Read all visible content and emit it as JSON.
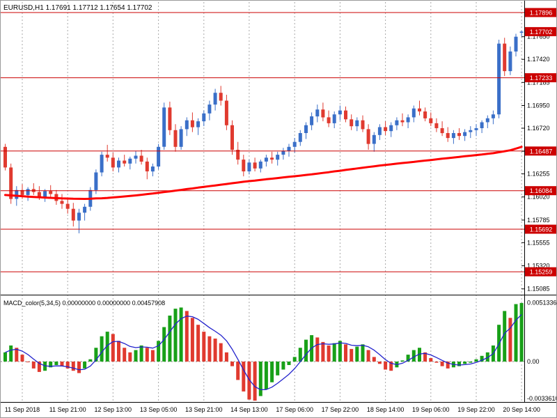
{
  "titles": {
    "main": "EURUSD,H1 1.17691 1.17712 1.17654 1.17702",
    "macd": "MACD_color(5,34,5) 0.00000000 0.00000000 0.00457908"
  },
  "colors": {
    "background": "#FFFFFF",
    "bull": "#3A6FC8",
    "bear": "#E03A2F",
    "ma": "#FF0000",
    "level": "#CC0000",
    "badge_bg": "#CC0000",
    "badge_text": "#FFFFFF",
    "grid": "#A8A8A8",
    "zero_line": "#888888",
    "macd_up": "#18A018",
    "macd_down": "#E03A2F",
    "macd_signal": "#2222CC",
    "axis_text": "#000000",
    "border": "#000000"
  },
  "chart_data": [
    {
      "type": "candlestick",
      "title": "EURUSD,H1",
      "symbol": "EURUSD",
      "timeframe": "H1",
      "ohlc_current": {
        "open": 1.17691,
        "high": 1.17712,
        "low": 1.17654,
        "close": 1.17702
      },
      "bid": 1.17702,
      "ylim": [
        1.1504,
        1.1796
      ],
      "y_ticks": [
        1.1765,
        1.1742,
        1.17185,
        1.1695,
        1.1672,
        1.16485,
        1.16255,
        1.1602,
        1.15785,
        1.15555,
        1.1532,
        1.15085
      ],
      "levels": [
        1.17896,
        1.17233,
        1.16487,
        1.16084,
        1.15692,
        1.15259
      ],
      "x_labels": [
        "11 Sep 2018",
        "11 Sep 21:00",
        "12 Sep 13:00",
        "13 Sep 05:00",
        "13 Sep 21:00",
        "14 Sep 13:00",
        "17 Sep 06:00",
        "17 Sep 22:00",
        "18 Sep 14:00",
        "19 Sep 06:00",
        "19 Sep 22:00",
        "20 Sep 14:00"
      ],
      "x_label_indices": [
        3,
        11,
        19,
        27,
        35,
        43,
        51,
        59,
        67,
        75,
        83,
        91
      ],
      "grid": true,
      "legend_position": "none",
      "candles": [
        [
          1.1653,
          1.1656,
          1.1629,
          1.1632
        ],
        [
          1.1632,
          1.1636,
          1.1595,
          1.16
        ],
        [
          1.16,
          1.1613,
          1.1593,
          1.1609
        ],
        [
          1.1609,
          1.1615,
          1.16,
          1.1604
        ],
        [
          1.1604,
          1.1612,
          1.1598,
          1.161
        ],
        [
          1.161,
          1.1616,
          1.1604,
          1.1607
        ],
        [
          1.1607,
          1.1613,
          1.1599,
          1.1602
        ],
        [
          1.1602,
          1.161,
          1.1597,
          1.1608
        ],
        [
          1.1608,
          1.1614,
          1.1602,
          1.1605
        ],
        [
          1.1605,
          1.1609,
          1.1594,
          1.1598
        ],
        [
          1.1598,
          1.1605,
          1.159,
          1.1595
        ],
        [
          1.1595,
          1.1601,
          1.1585,
          1.159
        ],
        [
          1.159,
          1.1596,
          1.1572,
          1.1578
        ],
        [
          1.1578,
          1.159,
          1.1565,
          1.1586
        ],
        [
          1.1586,
          1.1595,
          1.1578,
          1.1592
        ],
        [
          1.1592,
          1.1612,
          1.1588,
          1.1609
        ],
        [
          1.1609,
          1.163,
          1.1605,
          1.1627
        ],
        [
          1.1627,
          1.1648,
          1.1623,
          1.1645
        ],
        [
          1.1645,
          1.1655,
          1.1638,
          1.1642
        ],
        [
          1.1642,
          1.1647,
          1.1628,
          1.1632
        ],
        [
          1.1632,
          1.1642,
          1.1627,
          1.1639
        ],
        [
          1.1639,
          1.1645,
          1.1633,
          1.1636
        ],
        [
          1.1636,
          1.1643,
          1.163,
          1.1641
        ],
        [
          1.1641,
          1.1649,
          1.1636,
          1.1644
        ],
        [
          1.1644,
          1.165,
          1.1635,
          1.1638
        ],
        [
          1.1638,
          1.1642,
          1.162,
          1.1628
        ],
        [
          1.1628,
          1.1636,
          1.1623,
          1.1633
        ],
        [
          1.1633,
          1.1656,
          1.163,
          1.1653
        ],
        [
          1.1653,
          1.1698,
          1.165,
          1.1693
        ],
        [
          1.1693,
          1.1699,
          1.1665,
          1.167
        ],
        [
          1.167,
          1.1676,
          1.1648,
          1.1653
        ],
        [
          1.1653,
          1.1674,
          1.165,
          1.1671
        ],
        [
          1.1671,
          1.1683,
          1.1664,
          1.168
        ],
        [
          1.168,
          1.1688,
          1.1668,
          1.1673
        ],
        [
          1.1673,
          1.1682,
          1.1665,
          1.1679
        ],
        [
          1.1679,
          1.169,
          1.1674,
          1.1687
        ],
        [
          1.1687,
          1.17,
          1.168,
          1.1696
        ],
        [
          1.1696,
          1.1712,
          1.169,
          1.1708
        ],
        [
          1.1708,
          1.1715,
          1.1695,
          1.17
        ],
        [
          1.17,
          1.1706,
          1.167,
          1.1675
        ],
        [
          1.1675,
          1.168,
          1.1645,
          1.165
        ],
        [
          1.165,
          1.1658,
          1.1635,
          1.164
        ],
        [
          1.164,
          1.1645,
          1.1623,
          1.1628
        ],
        [
          1.1628,
          1.164,
          1.1625,
          1.1637
        ],
        [
          1.1637,
          1.1642,
          1.1628,
          1.1631
        ],
        [
          1.1631,
          1.164,
          1.1627,
          1.1638
        ],
        [
          1.1638,
          1.1645,
          1.1633,
          1.1642
        ],
        [
          1.1642,
          1.1648,
          1.1636,
          1.164
        ],
        [
          1.164,
          1.1648,
          1.1634,
          1.1645
        ],
        [
          1.1645,
          1.1652,
          1.164,
          1.1649
        ],
        [
          1.1649,
          1.1656,
          1.1643,
          1.1653
        ],
        [
          1.1653,
          1.1662,
          1.1647,
          1.1658
        ],
        [
          1.1658,
          1.167,
          1.1654,
          1.1667
        ],
        [
          1.1667,
          1.1678,
          1.1661,
          1.1675
        ],
        [
          1.1675,
          1.1688,
          1.167,
          1.1684
        ],
        [
          1.1684,
          1.1696,
          1.1678,
          1.1691
        ],
        [
          1.1691,
          1.1698,
          1.1679,
          1.1683
        ],
        [
          1.1683,
          1.169,
          1.1673,
          1.1677
        ],
        [
          1.1677,
          1.1689,
          1.1672,
          1.1686
        ],
        [
          1.1686,
          1.1695,
          1.168,
          1.169
        ],
        [
          1.169,
          1.1694,
          1.1678,
          1.1681
        ],
        [
          1.1681,
          1.1686,
          1.167,
          1.1674
        ],
        [
          1.1674,
          1.1683,
          1.1669,
          1.168
        ],
        [
          1.168,
          1.1685,
          1.1668,
          1.1671
        ],
        [
          1.1671,
          1.1676,
          1.165,
          1.1656
        ],
        [
          1.1656,
          1.1668,
          1.1648,
          1.1665
        ],
        [
          1.1665,
          1.1676,
          1.166,
          1.1673
        ],
        [
          1.1673,
          1.1679,
          1.1665,
          1.1669
        ],
        [
          1.1669,
          1.1678,
          1.1663,
          1.1675
        ],
        [
          1.1675,
          1.1683,
          1.167,
          1.168
        ],
        [
          1.168,
          1.1687,
          1.1674,
          1.1678
        ],
        [
          1.1678,
          1.1686,
          1.1672,
          1.1683
        ],
        [
          1.1683,
          1.1695,
          1.1678,
          1.1692
        ],
        [
          1.1692,
          1.17,
          1.1685,
          1.1689
        ],
        [
          1.1689,
          1.1693,
          1.1679,
          1.1682
        ],
        [
          1.1682,
          1.1688,
          1.1674,
          1.1677
        ],
        [
          1.1677,
          1.1682,
          1.1668,
          1.1672
        ],
        [
          1.1672,
          1.1679,
          1.1664,
          1.1667
        ],
        [
          1.1667,
          1.1673,
          1.1658,
          1.1662
        ],
        [
          1.1662,
          1.167,
          1.1656,
          1.1667
        ],
        [
          1.1667,
          1.1672,
          1.166,
          1.1664
        ],
        [
          1.1664,
          1.1671,
          1.1659,
          1.1668
        ],
        [
          1.1668,
          1.1674,
          1.1662,
          1.167
        ],
        [
          1.167,
          1.1676,
          1.1664,
          1.1672
        ],
        [
          1.1672,
          1.168,
          1.1667,
          1.1678
        ],
        [
          1.1678,
          1.1685,
          1.1672,
          1.1682
        ],
        [
          1.1682,
          1.169,
          1.1676,
          1.1686
        ],
        [
          1.1686,
          1.1762,
          1.1682,
          1.1758
        ],
        [
          1.1758,
          1.1764,
          1.1725,
          1.173
        ],
        [
          1.173,
          1.1755,
          1.1726,
          1.175
        ],
        [
          1.175,
          1.1768,
          1.1745,
          1.1765
        ],
        [
          1.17691,
          1.17712,
          1.17654,
          1.17702
        ]
      ],
      "ma": [
        1.1604,
        1.16036,
        1.16032,
        1.16028,
        1.16024,
        1.1602,
        1.16017,
        1.16014,
        1.16011,
        1.16008,
        1.16005,
        1.16004,
        1.16002,
        1.16001,
        1.16,
        1.16002,
        1.16005,
        1.16007,
        1.1601,
        1.16015,
        1.1602,
        1.16025,
        1.1603,
        1.16036,
        1.16042,
        1.16049,
        1.16055,
        1.16062,
        1.1607,
        1.16077,
        1.16085,
        1.16092,
        1.161,
        1.16107,
        1.16115,
        1.16122,
        1.1613,
        1.16137,
        1.16145,
        1.16152,
        1.1616,
        1.16167,
        1.16175,
        1.16181,
        1.16187,
        1.16194,
        1.162,
        1.16206,
        1.16212,
        1.16219,
        1.16225,
        1.16231,
        1.16237,
        1.16244,
        1.1625,
        1.16257,
        1.16265,
        1.16272,
        1.1628,
        1.16287,
        1.16295,
        1.16302,
        1.1631,
        1.16317,
        1.16325,
        1.16332,
        1.1634,
        1.16346,
        1.16352,
        1.16359,
        1.16365,
        1.16371,
        1.16377,
        1.16384,
        1.1639,
        1.16396,
        1.16402,
        1.16409,
        1.16415,
        1.16421,
        1.16427,
        1.16434,
        1.1644,
        1.16446,
        1.16452,
        1.16459,
        1.16465,
        1.16475,
        1.16485,
        1.16495,
        1.16512,
        1.1653
      ]
    },
    {
      "type": "bar",
      "title": "MACD_color(5,34,5)",
      "header_values": [
        "0.00000000",
        "0.00000000",
        "0.00457908"
      ],
      "ylim": [
        -0.0034,
        0.0053
      ],
      "y_ticks": [
        {
          "label": "0.0051336",
          "value": 0.0051336
        },
        {
          "label": "0.00",
          "value": 0
        },
        {
          "label": "-0.0033610",
          "value": -0.003361
        }
      ],
      "hist": [
        0.0008,
        0.0014,
        0.0012,
        0.0006,
        0.0,
        -0.0006,
        -0.0009,
        -0.0008,
        -0.0005,
        -0.0003,
        -0.0004,
        -0.0006,
        -0.0008,
        -0.001,
        -0.0006,
        0.0002,
        0.0012,
        0.0022,
        0.0026,
        0.0024,
        0.0018,
        0.0012,
        0.0008,
        0.001,
        0.0014,
        0.0012,
        0.001,
        0.0018,
        0.003,
        0.004,
        0.0046,
        0.0047,
        0.0044,
        0.0038,
        0.0032,
        0.0026,
        0.0022,
        0.002,
        0.0016,
        0.0008,
        -0.0004,
        -0.0016,
        -0.0026,
        -0.0033,
        -0.0034,
        -0.003,
        -0.0024,
        -0.0018,
        -0.0012,
        -0.0007,
        -0.0003,
        0.0004,
        0.0012,
        0.0019,
        0.0023,
        0.0021,
        0.0017,
        0.0014,
        0.0016,
        0.0018,
        0.0015,
        0.0011,
        0.0013,
        0.0015,
        0.001,
        0.0004,
        -0.0002,
        -0.0007,
        -0.0008,
        -0.0005,
        0.0001,
        0.0006,
        0.001,
        0.0012,
        0.0008,
        0.0003,
        -0.0001,
        -0.0004,
        -0.0006,
        -0.0005,
        -0.0004,
        -0.0002,
        -0.0001,
        0.0002,
        0.0005,
        0.0008,
        0.0014,
        0.0032,
        0.0044,
        0.0038,
        0.005,
        0.0051
      ]
    }
  ]
}
